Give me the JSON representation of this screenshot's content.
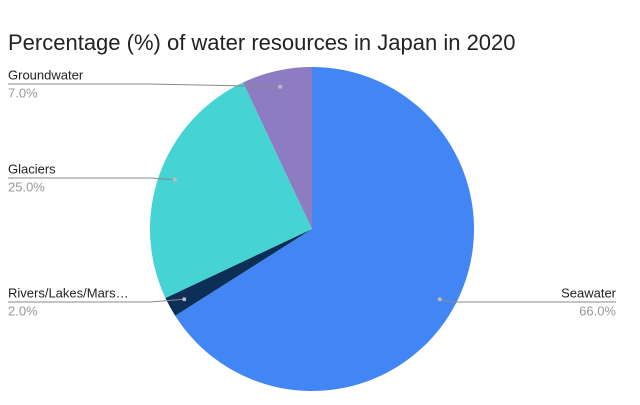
{
  "chart_data": {
    "type": "pie",
    "title": "Percentage (%) of water resources in Japan in 2020",
    "categories": [
      "Seawater",
      "Rivers/Lakes/Mars…",
      "Glaciers",
      "Groundwater"
    ],
    "values": [
      66,
      2,
      25,
      7
    ],
    "value_labels": [
      "66.0%",
      "2.0%",
      "25.0%",
      "7.0%"
    ],
    "colors": [
      "#4285f4",
      "#0b2f57",
      "#46d3d3",
      "#8e7cc3"
    ]
  }
}
